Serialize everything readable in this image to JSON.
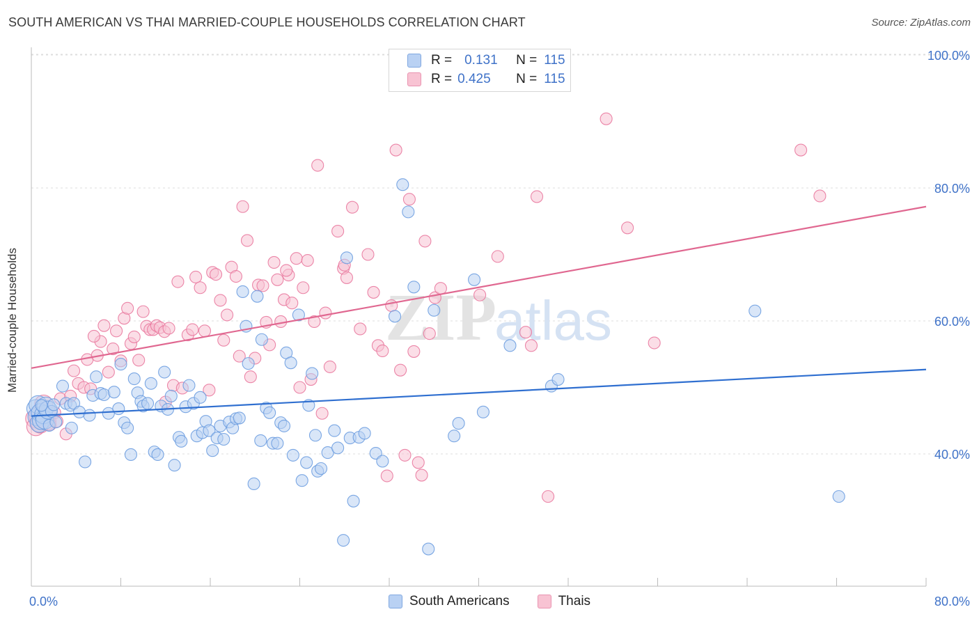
{
  "title": "SOUTH AMERICAN VS THAI MARRIED-COUPLE HOUSEHOLDS CORRELATION CHART",
  "source": "Source: ZipAtlas.com",
  "watermark": {
    "zip": "ZIP",
    "atlas": "atlas"
  },
  "legend": {
    "rows": [
      {
        "r_label": "R =",
        "r_value": "0.131",
        "n_label": "N =",
        "n_value": "115",
        "color": "#7fa7e0"
      },
      {
        "r_label": "R =",
        "r_value": "0.425",
        "n_label": "N =",
        "n_value": "115",
        "color": "#e993b0"
      }
    ]
  },
  "bottom_legend": [
    "South Americans",
    "Thais"
  ],
  "chart_data": {
    "type": "scatter",
    "title": "SOUTH AMERICAN VS THAI MARRIED-COUPLE HOUSEHOLDS CORRELATION CHART",
    "xlabel": "",
    "ylabel": "Married-couple Households",
    "xlim": [
      0,
      80
    ],
    "ylim": [
      20,
      103
    ],
    "x_tick_labels": [
      "0.0%",
      "80.0%"
    ],
    "y_ticks": [
      40,
      60,
      80,
      100
    ],
    "y_tick_labels": [
      "40.0%",
      "60.0%",
      "80.0%",
      "100.0%"
    ],
    "grid": true,
    "legend_position": "top-center",
    "series": [
      {
        "name": "South Americans",
        "color": "#6d9de0",
        "fill": "#b9d1f3",
        "trend": {
          "x": [
            0,
            80
          ],
          "y": [
            45.7,
            52.7
          ]
        },
        "points": [
          [
            0.4,
            46.8
          ],
          [
            0.5,
            45.6
          ],
          [
            0.6,
            47.4
          ],
          [
            0.7,
            44.6
          ],
          [
            0.8,
            46.2
          ],
          [
            0.9,
            45.0
          ],
          [
            1.1,
            45.9
          ],
          [
            1.2,
            45.1
          ],
          [
            1.3,
            47.2
          ],
          [
            1.5,
            46.6
          ],
          [
            1.6,
            44.3
          ],
          [
            1.8,
            46.4
          ],
          [
            2.0,
            47.4
          ],
          [
            2.2,
            44.8
          ],
          [
            2.8,
            50.2
          ],
          [
            3.1,
            47.6
          ],
          [
            3.5,
            47.3
          ],
          [
            3.8,
            47.6
          ],
          [
            4.3,
            46.3
          ],
          [
            4.8,
            38.8
          ],
          [
            5.2,
            45.8
          ],
          [
            5.5,
            48.8
          ],
          [
            5.8,
            51.6
          ],
          [
            6.2,
            49.1
          ],
          [
            6.5,
            48.9
          ],
          [
            6.9,
            46.1
          ],
          [
            7.4,
            49.3
          ],
          [
            7.8,
            46.8
          ],
          [
            8.0,
            53.5
          ],
          [
            8.3,
            44.7
          ],
          [
            8.6,
            43.9
          ],
          [
            8.9,
            39.9
          ],
          [
            9.2,
            51.3
          ],
          [
            9.5,
            49.2
          ],
          [
            9.8,
            47.9
          ],
          [
            10.0,
            47.2
          ],
          [
            10.4,
            47.6
          ],
          [
            10.7,
            50.6
          ],
          [
            11.0,
            40.3
          ],
          [
            11.3,
            39.9
          ],
          [
            11.6,
            47.2
          ],
          [
            11.9,
            52.3
          ],
          [
            12.2,
            46.7
          ],
          [
            12.5,
            48.7
          ],
          [
            12.8,
            38.3
          ],
          [
            13.2,
            42.5
          ],
          [
            13.4,
            41.9
          ],
          [
            13.8,
            47.1
          ],
          [
            14.1,
            50.3
          ],
          [
            14.5,
            47.6
          ],
          [
            14.8,
            42.7
          ],
          [
            15.1,
            48.5
          ],
          [
            15.3,
            43.2
          ],
          [
            15.6,
            44.9
          ],
          [
            15.9,
            43.5
          ],
          [
            16.2,
            40.5
          ],
          [
            16.6,
            42.4
          ],
          [
            16.9,
            44.2
          ],
          [
            17.2,
            42.2
          ],
          [
            17.7,
            44.8
          ],
          [
            18.0,
            43.9
          ],
          [
            18.3,
            45.3
          ],
          [
            18.6,
            45.4
          ],
          [
            18.9,
            64.4
          ],
          [
            19.2,
            59.2
          ],
          [
            19.4,
            53.6
          ],
          [
            19.9,
            35.5
          ],
          [
            20.2,
            63.7
          ],
          [
            20.5,
            42.0
          ],
          [
            20.6,
            57.2
          ],
          [
            21.0,
            46.9
          ],
          [
            21.3,
            46.2
          ],
          [
            21.6,
            41.6
          ],
          [
            22.0,
            41.6
          ],
          [
            22.3,
            44.7
          ],
          [
            22.6,
            44.2
          ],
          [
            22.8,
            55.2
          ],
          [
            23.2,
            53.7
          ],
          [
            23.4,
            39.8
          ],
          [
            23.9,
            60.9
          ],
          [
            24.2,
            36.0
          ],
          [
            24.6,
            38.7
          ],
          [
            24.8,
            47.3
          ],
          [
            25.1,
            52.1
          ],
          [
            25.4,
            42.8
          ],
          [
            25.6,
            37.4
          ],
          [
            25.9,
            37.8
          ],
          [
            26.5,
            40.2
          ],
          [
            27.1,
            43.5
          ],
          [
            27.4,
            40.9
          ],
          [
            27.9,
            27.0
          ],
          [
            28.2,
            69.5
          ],
          [
            28.5,
            42.4
          ],
          [
            28.8,
            32.9
          ],
          [
            29.3,
            42.5
          ],
          [
            29.8,
            43.1
          ],
          [
            30.8,
            40.1
          ],
          [
            31.4,
            38.9
          ],
          [
            32.5,
            60.7
          ],
          [
            33.2,
            80.5
          ],
          [
            33.7,
            76.4
          ],
          [
            34.2,
            65.1
          ],
          [
            35.5,
            25.7
          ],
          [
            36.0,
            61.6
          ],
          [
            37.8,
            42.7
          ],
          [
            38.2,
            44.6
          ],
          [
            39.6,
            66.2
          ],
          [
            40.4,
            46.3
          ],
          [
            42.8,
            56.3
          ],
          [
            46.5,
            50.2
          ],
          [
            47.1,
            51.2
          ],
          [
            64.7,
            61.5
          ],
          [
            72.2,
            33.6
          ],
          [
            0.9,
            47.3
          ],
          [
            3.6,
            43.9
          ]
        ]
      },
      {
        "name": "Thais",
        "color": "#e9799e",
        "fill": "#f8c3d3",
        "trend": {
          "x": [
            0,
            80
          ],
          "y": [
            52.9,
            77.2
          ]
        },
        "points": [
          [
            0.3,
            45.3
          ],
          [
            0.4,
            44.1
          ],
          [
            0.6,
            45.8
          ],
          [
            0.8,
            44.5
          ],
          [
            1.1,
            47.5
          ],
          [
            1.4,
            44.9
          ],
          [
            1.7,
            44.4
          ],
          [
            2.1,
            46.2
          ],
          [
            2.6,
            48.3
          ],
          [
            3.1,
            43.0
          ],
          [
            3.5,
            48.7
          ],
          [
            3.8,
            52.5
          ],
          [
            4.2,
            50.6
          ],
          [
            4.7,
            50.0
          ],
          [
            5.0,
            54.2
          ],
          [
            5.3,
            49.8
          ],
          [
            5.9,
            54.8
          ],
          [
            6.2,
            56.9
          ],
          [
            6.5,
            59.3
          ],
          [
            6.9,
            52.3
          ],
          [
            7.3,
            55.8
          ],
          [
            7.6,
            58.5
          ],
          [
            8.0,
            54.0
          ],
          [
            8.3,
            60.4
          ],
          [
            8.6,
            61.9
          ],
          [
            8.9,
            56.6
          ],
          [
            9.2,
            57.6
          ],
          [
            9.6,
            54.1
          ],
          [
            10.0,
            61.4
          ],
          [
            10.3,
            59.2
          ],
          [
            10.6,
            58.7
          ],
          [
            10.9,
            58.7
          ],
          [
            11.2,
            59.3
          ],
          [
            11.5,
            59.0
          ],
          [
            11.9,
            58.4
          ],
          [
            12.3,
            58.9
          ],
          [
            12.7,
            50.3
          ],
          [
            13.1,
            65.9
          ],
          [
            13.5,
            49.9
          ],
          [
            14.0,
            57.9
          ],
          [
            14.4,
            58.7
          ],
          [
            14.7,
            66.6
          ],
          [
            15.1,
            65.0
          ],
          [
            15.5,
            58.5
          ],
          [
            15.9,
            49.6
          ],
          [
            16.2,
            67.3
          ],
          [
            16.5,
            67.0
          ],
          [
            16.9,
            63.1
          ],
          [
            17.2,
            57.1
          ],
          [
            17.5,
            60.9
          ],
          [
            17.9,
            68.1
          ],
          [
            18.3,
            66.7
          ],
          [
            18.6,
            54.7
          ],
          [
            18.9,
            77.2
          ],
          [
            19.3,
            72.1
          ],
          [
            19.6,
            51.6
          ],
          [
            20.0,
            54.4
          ],
          [
            20.3,
            65.4
          ],
          [
            20.7,
            65.3
          ],
          [
            21.0,
            59.8
          ],
          [
            21.3,
            56.4
          ],
          [
            21.7,
            68.8
          ],
          [
            22.0,
            66.2
          ],
          [
            22.3,
            59.9
          ],
          [
            22.6,
            63.2
          ],
          [
            23.0,
            66.9
          ],
          [
            23.3,
            62.7
          ],
          [
            23.7,
            69.4
          ],
          [
            24.0,
            50.0
          ],
          [
            24.3,
            65.0
          ],
          [
            24.7,
            69.1
          ],
          [
            25.0,
            51.2
          ],
          [
            25.3,
            59.9
          ],
          [
            25.6,
            83.4
          ],
          [
            26.0,
            46.1
          ],
          [
            26.3,
            61.2
          ],
          [
            26.7,
            53.1
          ],
          [
            27.4,
            73.5
          ],
          [
            27.9,
            67.9
          ],
          [
            28.2,
            66.5
          ],
          [
            28.7,
            77.1
          ],
          [
            29.4,
            58.8
          ],
          [
            30.1,
            70.0
          ],
          [
            30.6,
            64.3
          ],
          [
            31.0,
            56.3
          ],
          [
            31.4,
            55.5
          ],
          [
            31.8,
            36.7
          ],
          [
            32.2,
            62.3
          ],
          [
            32.6,
            85.7
          ],
          [
            33.0,
            52.6
          ],
          [
            33.4,
            39.8
          ],
          [
            33.8,
            78.3
          ],
          [
            34.2,
            55.4
          ],
          [
            34.6,
            38.7
          ],
          [
            34.9,
            36.8
          ],
          [
            35.2,
            72.0
          ],
          [
            35.6,
            58.1
          ],
          [
            36.1,
            63.5
          ],
          [
            36.6,
            64.9
          ],
          [
            40.1,
            63.9
          ],
          [
            41.7,
            69.7
          ],
          [
            44.2,
            58.3
          ],
          [
            44.7,
            56.3
          ],
          [
            45.2,
            78.7
          ],
          [
            46.2,
            33.6
          ],
          [
            51.4,
            90.4
          ],
          [
            53.3,
            74.0
          ],
          [
            55.7,
            56.7
          ],
          [
            68.8,
            85.7
          ],
          [
            70.5,
            78.8
          ],
          [
            2.3,
            44.9
          ],
          [
            5.6,
            57.7
          ],
          [
            12.0,
            47.8
          ],
          [
            22.8,
            67.6
          ],
          [
            28.0,
            68.4
          ]
        ]
      }
    ]
  }
}
